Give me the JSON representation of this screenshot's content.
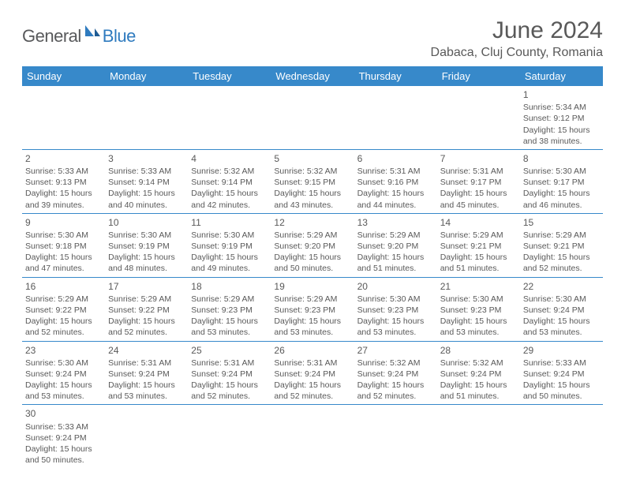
{
  "logo": {
    "main": "General",
    "accent": "Blue"
  },
  "title": "June 2024",
  "location": "Dabaca, Cluj County, Romania",
  "colors": {
    "header_bg": "#3789ca",
    "header_text": "#ffffff",
    "text": "#595959",
    "border": "#3789ca",
    "logo_gray": "#58595b",
    "logo_blue": "#2f7bbf"
  },
  "day_headers": [
    "Sunday",
    "Monday",
    "Tuesday",
    "Wednesday",
    "Thursday",
    "Friday",
    "Saturday"
  ],
  "weeks": [
    [
      null,
      null,
      null,
      null,
      null,
      null,
      {
        "n": "1",
        "sr": "5:34 AM",
        "ss": "9:12 PM",
        "dl": "15 hours and 38 minutes."
      }
    ],
    [
      {
        "n": "2",
        "sr": "5:33 AM",
        "ss": "9:13 PM",
        "dl": "15 hours and 39 minutes."
      },
      {
        "n": "3",
        "sr": "5:33 AM",
        "ss": "9:14 PM",
        "dl": "15 hours and 40 minutes."
      },
      {
        "n": "4",
        "sr": "5:32 AM",
        "ss": "9:14 PM",
        "dl": "15 hours and 42 minutes."
      },
      {
        "n": "5",
        "sr": "5:32 AM",
        "ss": "9:15 PM",
        "dl": "15 hours and 43 minutes."
      },
      {
        "n": "6",
        "sr": "5:31 AM",
        "ss": "9:16 PM",
        "dl": "15 hours and 44 minutes."
      },
      {
        "n": "7",
        "sr": "5:31 AM",
        "ss": "9:17 PM",
        "dl": "15 hours and 45 minutes."
      },
      {
        "n": "8",
        "sr": "5:30 AM",
        "ss": "9:17 PM",
        "dl": "15 hours and 46 minutes."
      }
    ],
    [
      {
        "n": "9",
        "sr": "5:30 AM",
        "ss": "9:18 PM",
        "dl": "15 hours and 47 minutes."
      },
      {
        "n": "10",
        "sr": "5:30 AM",
        "ss": "9:19 PM",
        "dl": "15 hours and 48 minutes."
      },
      {
        "n": "11",
        "sr": "5:30 AM",
        "ss": "9:19 PM",
        "dl": "15 hours and 49 minutes."
      },
      {
        "n": "12",
        "sr": "5:29 AM",
        "ss": "9:20 PM",
        "dl": "15 hours and 50 minutes."
      },
      {
        "n": "13",
        "sr": "5:29 AM",
        "ss": "9:20 PM",
        "dl": "15 hours and 51 minutes."
      },
      {
        "n": "14",
        "sr": "5:29 AM",
        "ss": "9:21 PM",
        "dl": "15 hours and 51 minutes."
      },
      {
        "n": "15",
        "sr": "5:29 AM",
        "ss": "9:21 PM",
        "dl": "15 hours and 52 minutes."
      }
    ],
    [
      {
        "n": "16",
        "sr": "5:29 AM",
        "ss": "9:22 PM",
        "dl": "15 hours and 52 minutes."
      },
      {
        "n": "17",
        "sr": "5:29 AM",
        "ss": "9:22 PM",
        "dl": "15 hours and 52 minutes."
      },
      {
        "n": "18",
        "sr": "5:29 AM",
        "ss": "9:23 PM",
        "dl": "15 hours and 53 minutes."
      },
      {
        "n": "19",
        "sr": "5:29 AM",
        "ss": "9:23 PM",
        "dl": "15 hours and 53 minutes."
      },
      {
        "n": "20",
        "sr": "5:30 AM",
        "ss": "9:23 PM",
        "dl": "15 hours and 53 minutes."
      },
      {
        "n": "21",
        "sr": "5:30 AM",
        "ss": "9:23 PM",
        "dl": "15 hours and 53 minutes."
      },
      {
        "n": "22",
        "sr": "5:30 AM",
        "ss": "9:24 PM",
        "dl": "15 hours and 53 minutes."
      }
    ],
    [
      {
        "n": "23",
        "sr": "5:30 AM",
        "ss": "9:24 PM",
        "dl": "15 hours and 53 minutes."
      },
      {
        "n": "24",
        "sr": "5:31 AM",
        "ss": "9:24 PM",
        "dl": "15 hours and 53 minutes."
      },
      {
        "n": "25",
        "sr": "5:31 AM",
        "ss": "9:24 PM",
        "dl": "15 hours and 52 minutes."
      },
      {
        "n": "26",
        "sr": "5:31 AM",
        "ss": "9:24 PM",
        "dl": "15 hours and 52 minutes."
      },
      {
        "n": "27",
        "sr": "5:32 AM",
        "ss": "9:24 PM",
        "dl": "15 hours and 52 minutes."
      },
      {
        "n": "28",
        "sr": "5:32 AM",
        "ss": "9:24 PM",
        "dl": "15 hours and 51 minutes."
      },
      {
        "n": "29",
        "sr": "5:33 AM",
        "ss": "9:24 PM",
        "dl": "15 hours and 50 minutes."
      }
    ],
    [
      {
        "n": "30",
        "sr": "5:33 AM",
        "ss": "9:24 PM",
        "dl": "15 hours and 50 minutes."
      },
      null,
      null,
      null,
      null,
      null,
      null
    ]
  ],
  "labels": {
    "sunrise": "Sunrise:",
    "sunset": "Sunset:",
    "daylight": "Daylight:"
  }
}
